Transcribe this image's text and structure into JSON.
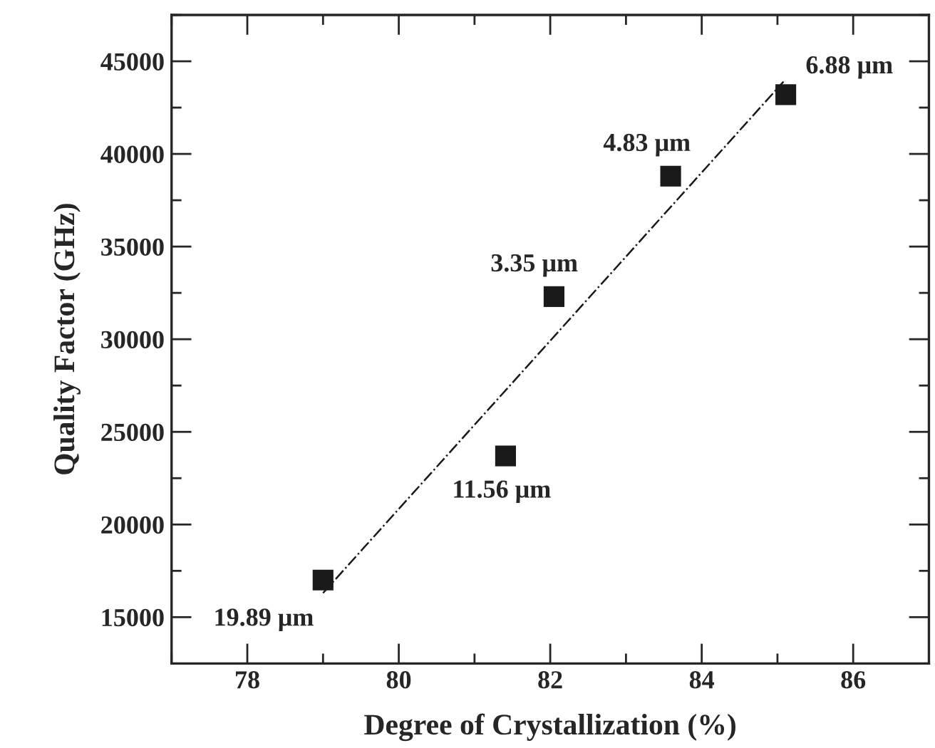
{
  "chart_data": {
    "type": "scatter",
    "xlabel": "Degree of Crystallization (%)",
    "ylabel": "Quality Factor (GHz)",
    "x": [
      79.0,
      81.41,
      82.05,
      83.59,
      85.11
    ],
    "series": [
      {
        "color": "#1a1a1a",
        "marker": "square",
        "values": [
          17000,
          23700,
          32300,
          38800,
          43200
        ]
      },
      {
        "type": "line",
        "color": "#1a1a1a",
        "line_style": "dashdot",
        "marker": "none",
        "x": [
          79.0,
          85.08
        ],
        "values": [
          16300,
          43900
        ]
      }
    ],
    "annotations": [
      {
        "text": "19.89 μm",
        "x": 79.0,
        "y": 17000
      },
      {
        "text": "11.56 μm",
        "x": 81.41,
        "y": 23700
      },
      {
        "text": "3.35 μm",
        "x": 82.05,
        "y": 32300
      },
      {
        "text": "4.83 μm",
        "x": 83.59,
        "y": 38800
      },
      {
        "text": "6.88 μm",
        "x": 85.11,
        "y": 43200
      }
    ],
    "xlim": [
      77,
      87
    ],
    "xticks": [
      78,
      80,
      82,
      84,
      86
    ],
    "ylim": [
      12500,
      47500
    ],
    "yticks": [
      15000,
      20000,
      25000,
      30000,
      35000,
      40000,
      45000
    ],
    "grid": false,
    "legend": false
  }
}
